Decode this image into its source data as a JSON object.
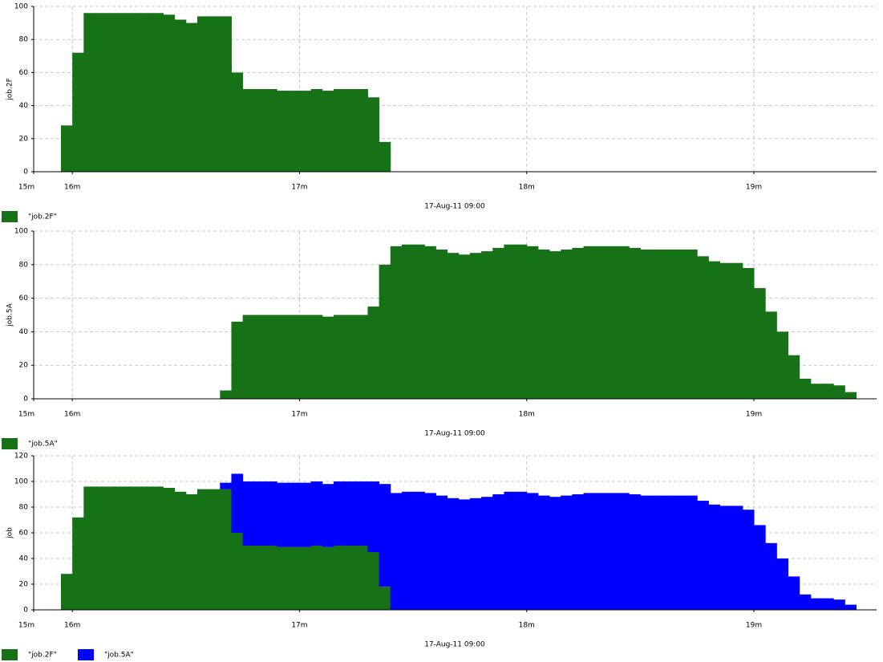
{
  "chart_data": [
    {
      "type": "step-area",
      "ylabel": "job.2F",
      "xlabel": "17-Aug-11 09:00",
      "grid": true,
      "stacked": false,
      "xlim": [
        15.83,
        19.54
      ],
      "xticks": [
        {
          "value": 15.83,
          "label": "15m"
        },
        {
          "value": 16,
          "label": "16m"
        },
        {
          "value": 17,
          "label": "17m"
        },
        {
          "value": 18,
          "label": "18m"
        },
        {
          "value": 19,
          "label": "19m"
        }
      ],
      "ylim": [
        0,
        100
      ],
      "yticks": [
        0,
        20,
        40,
        60,
        80,
        100
      ],
      "x": [
        15.85,
        15.9,
        15.95,
        16,
        16.05,
        16.1,
        16.15,
        16.2,
        16.25,
        16.3,
        16.35,
        16.4,
        16.45,
        16.5,
        16.55,
        16.6,
        16.65,
        16.7,
        16.75,
        16.8,
        16.85,
        16.9,
        16.95,
        17,
        17.05,
        17.1,
        17.15,
        17.2,
        17.25,
        17.3,
        17.35,
        17.4,
        17.45,
        17.5,
        17.55,
        17.6,
        17.65,
        17.7,
        17.75,
        17.8,
        17.85,
        17.9,
        17.95,
        18,
        18.05,
        18.1,
        18.15,
        18.2,
        18.25,
        18.3,
        18.35,
        18.4,
        18.45,
        18.5,
        18.55,
        18.6,
        18.65,
        18.7,
        18.75,
        18.8,
        18.85,
        18.9,
        18.95,
        19,
        19.05,
        19.1,
        19.15,
        19.2,
        19.25,
        19.3,
        19.35,
        19.4,
        19.45,
        19.5
      ],
      "series": [
        {
          "name": "\"job.2F\"",
          "color": "#177217",
          "values": [
            0,
            0,
            28,
            72,
            96,
            96,
            96,
            96,
            96,
            96,
            96,
            95,
            92,
            90,
            94,
            94,
            94,
            60,
            50,
            50,
            50,
            49,
            49,
            49,
            50,
            49,
            50,
            50,
            50,
            45,
            18,
            0,
            0,
            0,
            0,
            0,
            0,
            0,
            0,
            0,
            0,
            0,
            0,
            0,
            0,
            0,
            0,
            0,
            0,
            0,
            0,
            0,
            0,
            0,
            0,
            0,
            0,
            0,
            0,
            0,
            0,
            0,
            0,
            0,
            0,
            0,
            0,
            0,
            0,
            0,
            0,
            0,
            0,
            0
          ]
        }
      ]
    },
    {
      "type": "step-area",
      "ylabel": "job.5A",
      "xlabel": "17-Aug-11 09:00",
      "grid": true,
      "stacked": false,
      "xlim": [
        15.83,
        19.54
      ],
      "xticks": [
        {
          "value": 15.83,
          "label": "15m"
        },
        {
          "value": 16,
          "label": "16m"
        },
        {
          "value": 17,
          "label": "17m"
        },
        {
          "value": 18,
          "label": "18m"
        },
        {
          "value": 19,
          "label": "19m"
        }
      ],
      "ylim": [
        0,
        100
      ],
      "yticks": [
        0,
        20,
        40,
        60,
        80,
        100
      ],
      "x": [
        15.85,
        15.9,
        15.95,
        16,
        16.05,
        16.1,
        16.15,
        16.2,
        16.25,
        16.3,
        16.35,
        16.4,
        16.45,
        16.5,
        16.55,
        16.6,
        16.65,
        16.7,
        16.75,
        16.8,
        16.85,
        16.9,
        16.95,
        17,
        17.05,
        17.1,
        17.15,
        17.2,
        17.25,
        17.3,
        17.35,
        17.4,
        17.45,
        17.5,
        17.55,
        17.6,
        17.65,
        17.7,
        17.75,
        17.8,
        17.85,
        17.9,
        17.95,
        18,
        18.05,
        18.1,
        18.15,
        18.2,
        18.25,
        18.3,
        18.35,
        18.4,
        18.45,
        18.5,
        18.55,
        18.6,
        18.65,
        18.7,
        18.75,
        18.8,
        18.85,
        18.9,
        18.95,
        19,
        19.05,
        19.1,
        19.15,
        19.2,
        19.25,
        19.3,
        19.35,
        19.4,
        19.45,
        19.5
      ],
      "series": [
        {
          "name": "\"job.5A\"",
          "color": "#177217",
          "values": [
            0,
            0,
            0,
            0,
            0,
            0,
            0,
            0,
            0,
            0,
            0,
            0,
            0,
            0,
            0,
            0,
            5,
            46,
            50,
            50,
            50,
            50,
            50,
            50,
            50,
            49,
            50,
            50,
            50,
            55,
            80,
            91,
            92,
            92,
            91,
            89,
            87,
            86,
            87,
            88,
            90,
            92,
            92,
            91,
            89,
            88,
            89,
            90,
            91,
            91,
            91,
            91,
            90,
            89,
            89,
            89,
            89,
            89,
            85,
            82,
            81,
            81,
            78,
            66,
            52,
            40,
            26,
            12,
            9,
            9,
            8,
            4,
            0,
            0
          ]
        }
      ]
    },
    {
      "type": "step-area",
      "ylabel": "job",
      "xlabel": "17-Aug-11 09:00",
      "grid": true,
      "stacked": true,
      "xlim": [
        15.83,
        19.54
      ],
      "xticks": [
        {
          "value": 15.83,
          "label": "15m"
        },
        {
          "value": 16,
          "label": "16m"
        },
        {
          "value": 17,
          "label": "17m"
        },
        {
          "value": 18,
          "label": "18m"
        },
        {
          "value": 19,
          "label": "19m"
        }
      ],
      "ylim": [
        0,
        120
      ],
      "yticks": [
        0,
        20,
        40,
        60,
        80,
        100,
        120
      ],
      "x": [
        15.85,
        15.9,
        15.95,
        16,
        16.05,
        16.1,
        16.15,
        16.2,
        16.25,
        16.3,
        16.35,
        16.4,
        16.45,
        16.5,
        16.55,
        16.6,
        16.65,
        16.7,
        16.75,
        16.8,
        16.85,
        16.9,
        16.95,
        17,
        17.05,
        17.1,
        17.15,
        17.2,
        17.25,
        17.3,
        17.35,
        17.4,
        17.45,
        17.5,
        17.55,
        17.6,
        17.65,
        17.7,
        17.75,
        17.8,
        17.85,
        17.9,
        17.95,
        18,
        18.05,
        18.1,
        18.15,
        18.2,
        18.25,
        18.3,
        18.35,
        18.4,
        18.45,
        18.5,
        18.55,
        18.6,
        18.65,
        18.7,
        18.75,
        18.8,
        18.85,
        18.9,
        18.95,
        19,
        19.05,
        19.1,
        19.15,
        19.2,
        19.25,
        19.3,
        19.35,
        19.4,
        19.45,
        19.5
      ],
      "series": [
        {
          "name": "\"job.2F\"",
          "color": "#177217",
          "values": [
            0,
            0,
            28,
            72,
            96,
            96,
            96,
            96,
            96,
            96,
            96,
            95,
            92,
            90,
            94,
            94,
            94,
            60,
            50,
            50,
            50,
            49,
            49,
            49,
            50,
            49,
            50,
            50,
            50,
            45,
            18,
            0,
            0,
            0,
            0,
            0,
            0,
            0,
            0,
            0,
            0,
            0,
            0,
            0,
            0,
            0,
            0,
            0,
            0,
            0,
            0,
            0,
            0,
            0,
            0,
            0,
            0,
            0,
            0,
            0,
            0,
            0,
            0,
            0,
            0,
            0,
            0,
            0,
            0,
            0,
            0,
            0,
            0,
            0
          ]
        },
        {
          "name": "\"job.5A\"",
          "color": "#0000ff",
          "values": [
            0,
            0,
            0,
            0,
            0,
            0,
            0,
            0,
            0,
            0,
            0,
            0,
            0,
            0,
            0,
            0,
            5,
            46,
            50,
            50,
            50,
            50,
            50,
            50,
            50,
            49,
            50,
            50,
            50,
            55,
            80,
            91,
            92,
            92,
            91,
            89,
            87,
            86,
            87,
            88,
            90,
            92,
            92,
            91,
            89,
            88,
            89,
            90,
            91,
            91,
            91,
            91,
            90,
            89,
            89,
            89,
            89,
            89,
            85,
            82,
            81,
            81,
            78,
            66,
            52,
            40,
            26,
            12,
            9,
            9,
            8,
            4,
            0,
            0
          ]
        }
      ]
    }
  ]
}
